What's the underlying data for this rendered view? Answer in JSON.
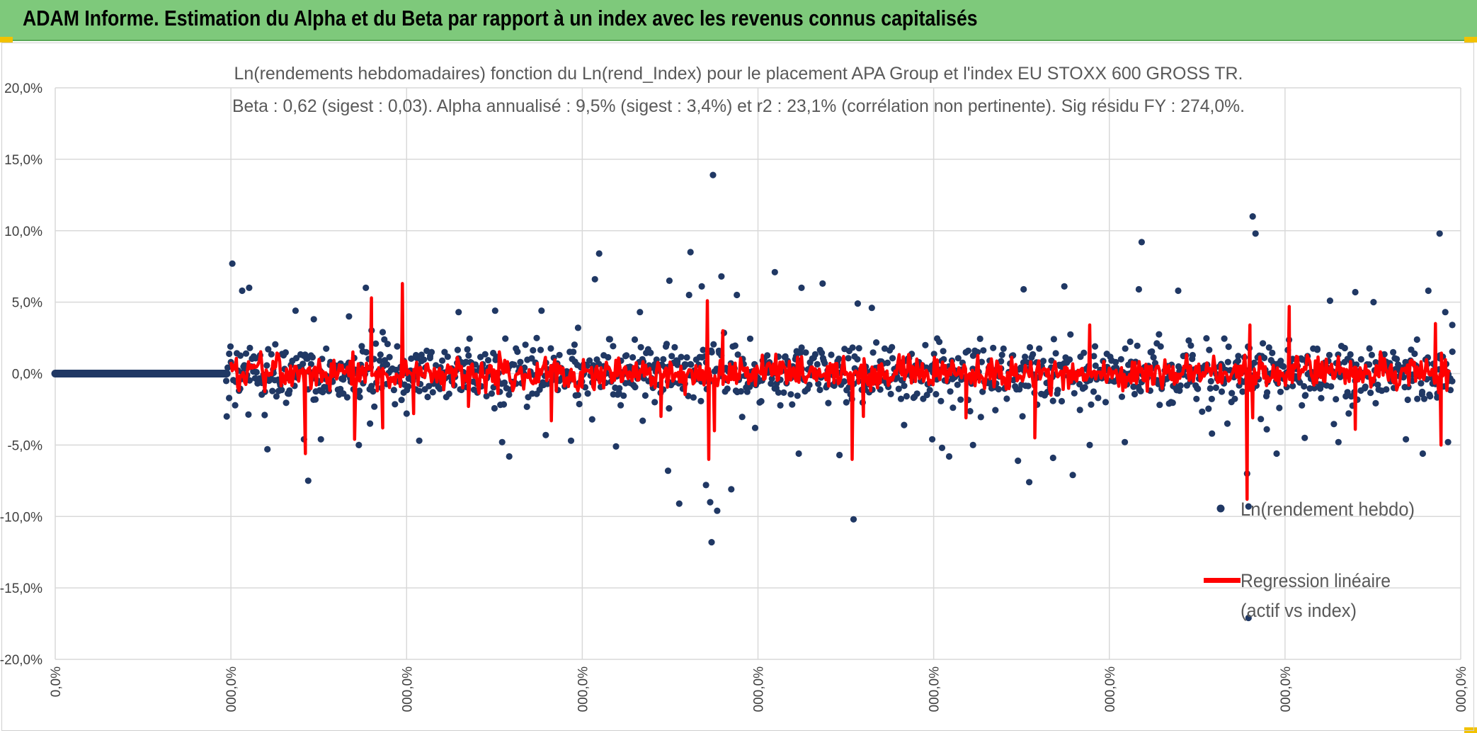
{
  "header": {
    "title": "ADAM Informe. Estimation du Alpha et du Beta par rapport à un index avec les revenus connus capitalisés"
  },
  "colors": {
    "banner": "#7ec97b",
    "points": "#203864",
    "regression": "#ff0000",
    "grid": "#d9d9d9"
  },
  "chart_data": {
    "type": "scatter",
    "title_line1": "Ln(rendements hebdomadaires) fonction du Ln(rend_Index) pour le placement APA Group et l'index EU STOXX 600 GROSS TR.",
    "title_line2": "Beta : 0,62 (sigest : 0,03). Alpha annualisé : 9,5% (sigest : 3,4%) et r2 : 23,1% (corrélation non pertinente). Sig résidu FY : 274,0%.",
    "ylim": [
      -20,
      20
    ],
    "yticks": [
      20,
      15,
      10,
      5,
      0,
      -5,
      -10,
      -15,
      -20
    ],
    "ytick_labels": [
      "20,0%",
      "15,0%",
      "10,0%",
      "5,0%",
      "0,0%",
      "-5,0%",
      "-10,0%",
      "-15,0%",
      "-20,0%"
    ],
    "xtick_labels": [
      "0,0%",
      "000,0%",
      "000,0%",
      "000,0%",
      "000,0%",
      "000,0%",
      "000,0%",
      "000,0%",
      "000,0%"
    ],
    "grid": true,
    "legend_position": "right",
    "series": [
      {
        "name": "Ln(rendement hebdo)",
        "kind": "points"
      },
      {
        "name_line1": "Regression linéaire",
        "name_line2": "(actif vs index)",
        "kind": "line"
      }
    ],
    "zero_segment_fraction": 0.122,
    "outliers": [
      {
        "t": 0.126,
        "v": 7.7
      },
      {
        "t": 0.122,
        "v": -3.0
      },
      {
        "t": 0.133,
        "v": 5.8
      },
      {
        "t": 0.138,
        "v": 6.0
      },
      {
        "t": 0.151,
        "v": -5.3
      },
      {
        "t": 0.149,
        "v": -2.9
      },
      {
        "t": 0.171,
        "v": 4.4
      },
      {
        "t": 0.177,
        "v": -4.6
      },
      {
        "t": 0.18,
        "v": -7.5
      },
      {
        "t": 0.189,
        "v": -4.6
      },
      {
        "t": 0.184,
        "v": 3.8
      },
      {
        "t": 0.209,
        "v": 4.0
      },
      {
        "t": 0.221,
        "v": 6.0
      },
      {
        "t": 0.224,
        "v": -3.5
      },
      {
        "t": 0.216,
        "v": -5.0
      },
      {
        "t": 0.233,
        "v": 2.9
      },
      {
        "t": 0.25,
        "v": -2.8
      },
      {
        "t": 0.259,
        "v": -4.7
      },
      {
        "t": 0.287,
        "v": 4.3
      },
      {
        "t": 0.313,
        "v": 4.4
      },
      {
        "t": 0.318,
        "v": -4.8
      },
      {
        "t": 0.323,
        "v": -5.8
      },
      {
        "t": 0.346,
        "v": 4.4
      },
      {
        "t": 0.349,
        "v": -4.3
      },
      {
        "t": 0.372,
        "v": 3.2
      },
      {
        "t": 0.367,
        "v": -4.7
      },
      {
        "t": 0.384,
        "v": 6.6
      },
      {
        "t": 0.387,
        "v": 8.4
      },
      {
        "t": 0.382,
        "v": -3.2
      },
      {
        "t": 0.399,
        "v": -5.1
      },
      {
        "t": 0.416,
        "v": 4.3
      },
      {
        "t": 0.418,
        "v": -3.3
      },
      {
        "t": 0.437,
        "v": 6.5
      },
      {
        "t": 0.436,
        "v": -6.8
      },
      {
        "t": 0.444,
        "v": -9.1
      },
      {
        "t": 0.451,
        "v": 5.5
      },
      {
        "t": 0.452,
        "v": 8.5
      },
      {
        "t": 0.46,
        "v": 6.1
      },
      {
        "t": 0.463,
        "v": -7.8
      },
      {
        "t": 0.466,
        "v": -9.0
      },
      {
        "t": 0.467,
        "v": -11.8
      },
      {
        "t": 0.471,
        "v": -9.6
      },
      {
        "t": 0.468,
        "v": 13.9
      },
      {
        "t": 0.474,
        "v": 6.8
      },
      {
        "t": 0.481,
        "v": -8.1
      },
      {
        "t": 0.485,
        "v": 5.5
      },
      {
        "t": 0.498,
        "v": -3.8
      },
      {
        "t": 0.512,
        "v": 7.1
      },
      {
        "t": 0.529,
        "v": -5.6
      },
      {
        "t": 0.531,
        "v": 6.0
      },
      {
        "t": 0.546,
        "v": 6.3
      },
      {
        "t": 0.558,
        "v": -5.7
      },
      {
        "t": 0.568,
        "v": -10.2
      },
      {
        "t": 0.571,
        "v": 4.9
      },
      {
        "t": 0.581,
        "v": 4.6
      },
      {
        "t": 0.604,
        "v": -3.6
      },
      {
        "t": 0.624,
        "v": -4.6
      },
      {
        "t": 0.631,
        "v": -5.2
      },
      {
        "t": 0.636,
        "v": -5.8
      },
      {
        "t": 0.653,
        "v": -5.0
      },
      {
        "t": 0.685,
        "v": -6.1
      },
      {
        "t": 0.689,
        "v": 5.9
      },
      {
        "t": 0.693,
        "v": -7.6
      },
      {
        "t": 0.71,
        "v": -5.9
      },
      {
        "t": 0.718,
        "v": 6.1
      },
      {
        "t": 0.724,
        "v": -7.1
      },
      {
        "t": 0.736,
        "v": -5.0
      },
      {
        "t": 0.761,
        "v": -4.8
      },
      {
        "t": 0.771,
        "v": 5.9
      },
      {
        "t": 0.773,
        "v": 9.2
      },
      {
        "t": 0.799,
        "v": 5.8
      },
      {
        "t": 0.823,
        "v": -4.2
      },
      {
        "t": 0.834,
        "v": -3.5
      },
      {
        "t": 0.848,
        "v": -7.0
      },
      {
        "t": 0.849,
        "v": -9.3
      },
      {
        "t": 0.852,
        "v": 11.0
      },
      {
        "t": 0.854,
        "v": 9.8
      },
      {
        "t": 0.849,
        "v": -17.1
      },
      {
        "t": 0.862,
        "v": -3.9
      },
      {
        "t": 0.869,
        "v": -5.6
      },
      {
        "t": 0.889,
        "v": -4.5
      },
      {
        "t": 0.907,
        "v": 5.1
      },
      {
        "t": 0.913,
        "v": -4.8
      },
      {
        "t": 0.925,
        "v": 5.7
      },
      {
        "t": 0.938,
        "v": 5.0
      },
      {
        "t": 0.961,
        "v": -4.6
      },
      {
        "t": 0.973,
        "v": -5.6
      },
      {
        "t": 0.977,
        "v": 5.8
      },
      {
        "t": 0.985,
        "v": 9.8
      },
      {
        "t": 0.991,
        "v": -4.8
      },
      {
        "t": 0.989,
        "v": 4.3
      },
      {
        "t": 0.994,
        "v": 3.4
      }
    ],
    "regression_spikes": [
      {
        "t": 0.178,
        "v": -5.6
      },
      {
        "t": 0.213,
        "v": -4.6
      },
      {
        "t": 0.225,
        "v": 5.3
      },
      {
        "t": 0.233,
        "v": -3.8
      },
      {
        "t": 0.247,
        "v": 6.3
      },
      {
        "t": 0.255,
        "v": -2.8
      },
      {
        "t": 0.294,
        "v": -2.3
      },
      {
        "t": 0.353,
        "v": -3.3
      },
      {
        "t": 0.431,
        "v": -3.0
      },
      {
        "t": 0.464,
        "v": 5.1
      },
      {
        "t": 0.465,
        "v": -6.0
      },
      {
        "t": 0.469,
        "v": -4.0
      },
      {
        "t": 0.475,
        "v": 3.0
      },
      {
        "t": 0.567,
        "v": -6.0
      },
      {
        "t": 0.575,
        "v": -3.0
      },
      {
        "t": 0.648,
        "v": -3.1
      },
      {
        "t": 0.697,
        "v": -4.5
      },
      {
        "t": 0.736,
        "v": 3.4
      },
      {
        "t": 0.848,
        "v": -8.8
      },
      {
        "t": 0.85,
        "v": 3.4
      },
      {
        "t": 0.852,
        "v": -3.1
      },
      {
        "t": 0.878,
        "v": 4.7
      },
      {
        "t": 0.925,
        "v": -3.9
      },
      {
        "t": 0.986,
        "v": -5.0
      },
      {
        "t": 0.982,
        "v": 3.5
      }
    ]
  }
}
